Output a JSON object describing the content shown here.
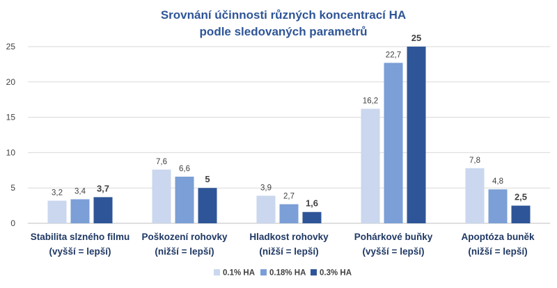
{
  "chart_data": {
    "type": "bar",
    "title": [
      "Srovnání účinnosti různých koncentrací HA",
      "podle sledovaných parametrů"
    ],
    "categories": [
      [
        "Stabilita slzného filmu",
        "(vyšší = lepší)"
      ],
      [
        "Poškození rohovky",
        "(nižší = lepší)"
      ],
      [
        "Hladkost rohovky",
        "(nižší = lepší)"
      ],
      [
        "Pohárkové buňky",
        "(vyšší = lepší)"
      ],
      [
        "Apoptóza buněk",
        "(nižší = lepší)"
      ]
    ],
    "series": [
      {
        "name": "0.1% HA",
        "color": "#CAD7EE",
        "values": [
          3.2,
          7.6,
          3.9,
          16.2,
          7.8
        ],
        "labels": [
          "3,2",
          "7,6",
          "3,9",
          "16,2",
          "7,8"
        ]
      },
      {
        "name": "0.18% HA",
        "color": "#7B9FD6",
        "values": [
          3.4,
          6.6,
          2.7,
          22.7,
          4.8
        ],
        "labels": [
          "3,4",
          "6,6",
          "2,7",
          "22,7",
          "4,8"
        ]
      },
      {
        "name": "0.3% HA",
        "color": "#2E5597",
        "values": [
          3.7,
          5,
          1.6,
          25,
          2.5
        ],
        "labels": [
          "3,7",
          "5",
          "1,6",
          "25",
          "2,5"
        ]
      }
    ],
    "highlight_label_color": "#ED7D31",
    "highlight_series_index": 2,
    "ylim": [
      0,
      25
    ],
    "yticks": [
      0,
      5,
      10,
      15,
      20,
      25
    ],
    "xlabel": "",
    "ylabel": "",
    "grid": true,
    "legend_position": "bottom"
  }
}
